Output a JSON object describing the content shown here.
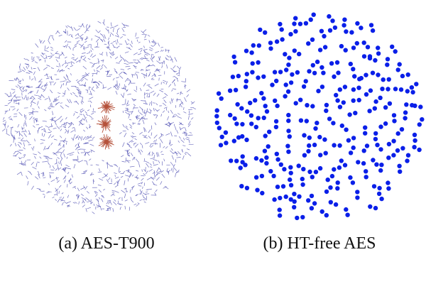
{
  "figure": {
    "panels": [
      {
        "caption": "(a) AES-T900",
        "graph_type": "dense-netlist",
        "node_color": "#4a4ab0",
        "trojan_color": "#b5523b",
        "trojan_clusters": 3
      },
      {
        "caption": "(b) HT-free AES",
        "graph_type": "isolated-pairs",
        "node_color": "#0a1fe8"
      }
    ]
  }
}
